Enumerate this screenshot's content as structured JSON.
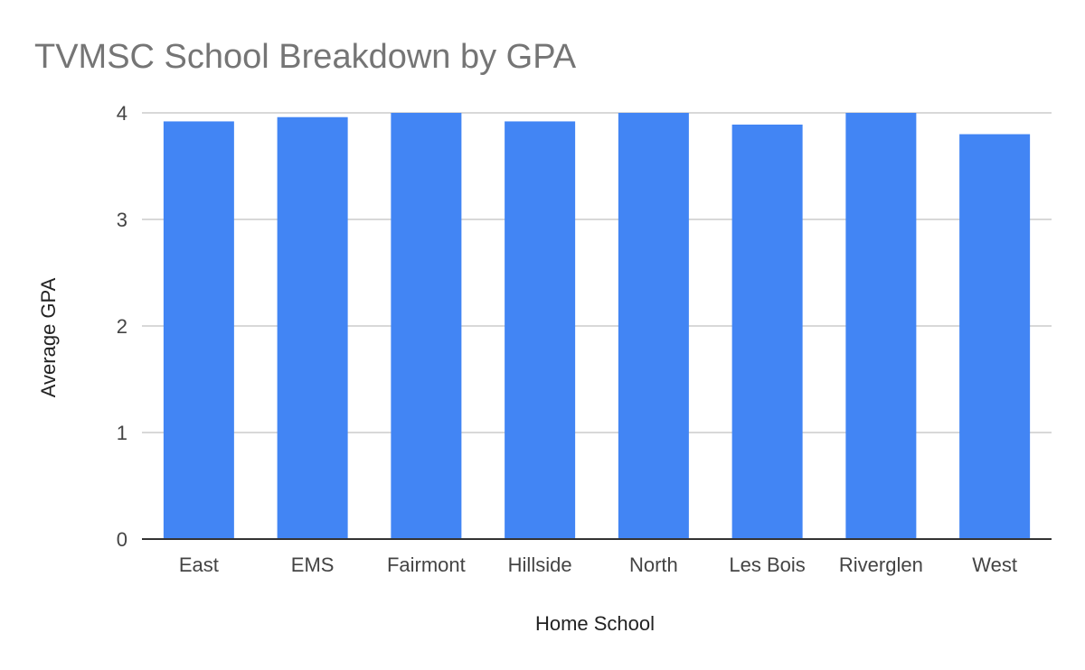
{
  "chart_data": {
    "type": "bar",
    "title": "TVMSC School Breakdown by GPA",
    "xlabel": "Home School",
    "ylabel": "Average GPA",
    "categories": [
      "East",
      "EMS",
      "Fairmont",
      "Hillside",
      "North",
      "Les Bois",
      "Riverglen",
      "West"
    ],
    "values": [
      3.92,
      3.96,
      4.0,
      3.92,
      4.0,
      3.89,
      4.0,
      3.8
    ],
    "ylim": [
      0,
      4
    ],
    "yticks": [
      "0",
      "1",
      "2",
      "3",
      "4"
    ],
    "grid": true,
    "legend": "none",
    "colors": {
      "bar": "#4285f4",
      "grid": "#cccccc",
      "baseline": "#333333"
    }
  }
}
